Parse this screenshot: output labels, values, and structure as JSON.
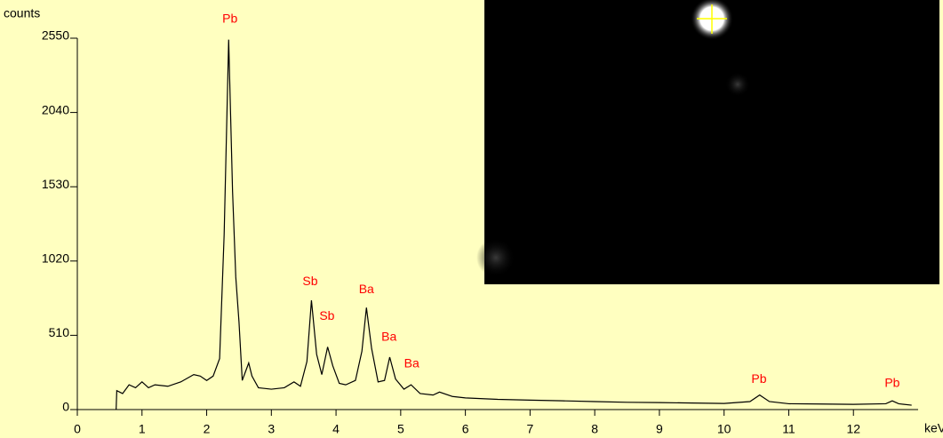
{
  "chart_data": {
    "type": "line",
    "y_label": "counts",
    "x_label": "keV",
    "xlim": [
      0,
      13
    ],
    "xticks": [
      0,
      1,
      2,
      3,
      4,
      5,
      6,
      7,
      8,
      9,
      10,
      11,
      12
    ],
    "ylim": [
      0,
      2550
    ],
    "yticks": [
      0,
      510,
      1020,
      1530,
      2040,
      2550
    ],
    "series": [
      {
        "color": "#000000",
        "x": [
          0.6,
          0.61,
          0.7,
          0.8,
          0.9,
          1.0,
          1.1,
          1.2,
          1.4,
          1.6,
          1.8,
          1.9,
          2.0,
          2.1,
          2.2,
          2.27,
          2.34,
          2.4,
          2.45,
          2.5,
          2.55,
          2.6,
          2.65,
          2.7,
          2.8,
          3.0,
          3.2,
          3.35,
          3.45,
          3.55,
          3.62,
          3.7,
          3.78,
          3.87,
          3.95,
          4.05,
          4.15,
          4.3,
          4.4,
          4.47,
          4.55,
          4.65,
          4.75,
          4.83,
          4.92,
          5.05,
          5.16,
          5.3,
          5.5,
          5.6,
          5.8,
          6.0,
          6.5,
          7.0,
          7.5,
          8.0,
          8.5,
          9.0,
          9.5,
          10.0,
          10.4,
          10.55,
          10.7,
          11.0,
          11.5,
          12.0,
          12.5,
          12.6,
          12.7,
          12.9
        ],
        "values": [
          0,
          130,
          110,
          170,
          150,
          190,
          150,
          170,
          160,
          190,
          240,
          230,
          200,
          230,
          350,
          1200,
          2540,
          1500,
          910,
          600,
          200,
          260,
          320,
          230,
          150,
          140,
          150,
          190,
          160,
          330,
          750,
          380,
          240,
          430,
          300,
          180,
          170,
          200,
          400,
          700,
          420,
          190,
          200,
          360,
          210,
          140,
          170,
          110,
          100,
          120,
          90,
          80,
          70,
          65,
          60,
          55,
          50,
          48,
          45,
          42,
          55,
          100,
          55,
          40,
          38,
          36,
          40,
          60,
          40,
          30
        ]
      }
    ],
    "annotation_color": "#ff0000",
    "annotations": [
      {
        "text": "Pb",
        "x": 2.36,
        "y": 2680
      },
      {
        "text": "Sb",
        "x": 3.6,
        "y": 878
      },
      {
        "text": "Sb",
        "x": 3.86,
        "y": 640
      },
      {
        "text": "Ba",
        "x": 4.47,
        "y": 823
      },
      {
        "text": "Ba",
        "x": 4.82,
        "y": 494
      },
      {
        "text": "Ba",
        "x": 5.17,
        "y": 311
      },
      {
        "text": "Pb",
        "x": 10.54,
        "y": 207
      },
      {
        "text": "Pb",
        "x": 12.6,
        "y": 177
      }
    ]
  }
}
